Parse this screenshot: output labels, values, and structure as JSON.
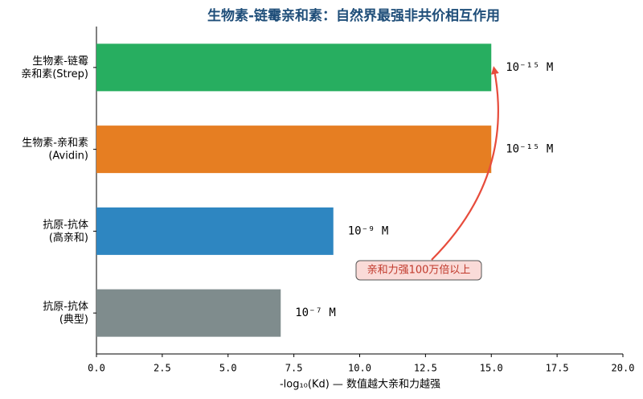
{
  "chart_data": {
    "type": "barh",
    "title": "生物素-链霉亲和素：自然界最强非共价相互作用",
    "xlabel": "-log₁₀(Kd) — 数值越大亲和力越强",
    "categories": [
      "生物素-链霉\n亲和素(Strep)",
      "生物素-亲和素\n(Avidin)",
      "抗原-抗体\n(高亲和)",
      "抗原-抗体\n(典型)"
    ],
    "values": [
      15,
      15,
      9,
      7
    ],
    "value_labels": [
      "10⁻¹⁵ M",
      "10⁻¹⁵ M",
      "10⁻⁹ M",
      "10⁻⁷ M"
    ],
    "colors": [
      "#27ae60",
      "#e67e22",
      "#2e86c1",
      "#7f8c8d"
    ],
    "xlim": [
      0,
      20
    ],
    "xticks": [
      {
        "value": 0,
        "label": "0.0"
      },
      2.5,
      {
        "value": 5,
        "label": "5.0"
      },
      7.5,
      {
        "value": 10,
        "label": "10.0"
      },
      12.5,
      {
        "value": 15,
        "label": "15.0"
      },
      17.5,
      {
        "value": 20,
        "label": "20.0"
      }
    ],
    "annotation": "亲和力强100万倍以上",
    "grid": false
  }
}
